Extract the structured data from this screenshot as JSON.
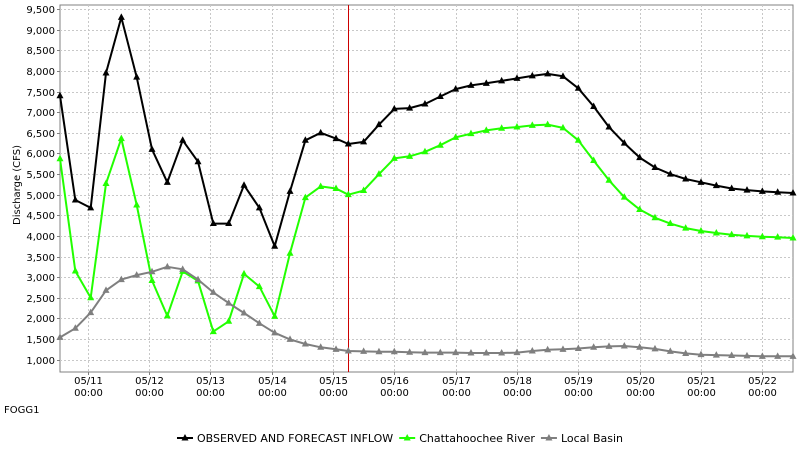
{
  "station_id": "FOGG1",
  "chart_data": {
    "type": "line",
    "ylabel": "Discharge (CFS)",
    "ylim": [
      700,
      9600
    ],
    "yticks": [
      1000,
      1500,
      2000,
      2500,
      3000,
      3500,
      4000,
      4500,
      5000,
      5500,
      6000,
      6500,
      7000,
      7500,
      8000,
      8500,
      9000,
      9500
    ],
    "ytick_labels": [
      "1,000",
      "1,500",
      "2,000",
      "2,500",
      "3,000",
      "3,500",
      "4,000",
      "4,500",
      "5,000",
      "5,500",
      "6,000",
      "6,500",
      "7,000",
      "7,500",
      "8,000",
      "8,500",
      "9,000",
      "9,500"
    ],
    "xlim_days": [
      10.55,
      22.5
    ],
    "x_axis": {
      "date_labels": [
        "05/11",
        "05/12",
        "05/13",
        "05/14",
        "05/15",
        "05/16",
        "05/17",
        "05/18",
        "05/19",
        "05/20",
        "05/21",
        "05/22"
      ],
      "time_labels": [
        "00:00",
        "00:00",
        "00:00",
        "00:00",
        "00:00",
        "00:00",
        "00:00",
        "00:00",
        "00:00",
        "00:00",
        "00:00",
        "00:00"
      ],
      "days": [
        11,
        12,
        13,
        14,
        15,
        16,
        17,
        18,
        19,
        20,
        21,
        22
      ]
    },
    "forecast_start_day": 15.25,
    "grid": true,
    "legend_position": "bottom",
    "series": [
      {
        "name": "OBSERVED AND FORECAST INFLOW",
        "color": "#000000",
        "x": [
          10.55,
          10.8,
          11.05,
          11.3,
          11.55,
          11.8,
          12.05,
          12.3,
          12.55,
          12.8,
          13.05,
          13.3,
          13.55,
          13.8,
          14.05,
          14.3,
          14.55,
          14.8,
          15.05,
          15.25,
          15.5,
          15.75,
          16.0,
          16.25,
          16.5,
          16.75,
          17.0,
          17.25,
          17.5,
          17.75,
          18.0,
          18.25,
          18.5,
          18.75,
          19.0,
          19.25,
          19.5,
          19.75,
          20.0,
          20.25,
          20.5,
          20.75,
          21.0,
          21.25,
          21.5,
          21.75,
          22.0,
          22.25,
          22.5
        ],
        "values": [
          7400,
          4870,
          4680,
          7950,
          9300,
          7850,
          6100,
          5300,
          6320,
          5800,
          4300,
          4300,
          5230,
          4680,
          3750,
          5080,
          6320,
          6500,
          6360,
          6230,
          6280,
          6700,
          7080,
          7100,
          7200,
          7380,
          7560,
          7650,
          7700,
          7760,
          7820,
          7880,
          7930,
          7870,
          7580,
          7140,
          6640,
          6250,
          5900,
          5660,
          5500,
          5380,
          5300,
          5220,
          5150,
          5110,
          5080,
          5060,
          5040
        ]
      },
      {
        "name": "Chattahoochee River",
        "color": "#22ff00",
        "x": [
          10.55,
          10.8,
          11.05,
          11.3,
          11.55,
          11.8,
          12.05,
          12.3,
          12.55,
          12.8,
          13.05,
          13.3,
          13.55,
          13.8,
          14.05,
          14.3,
          14.55,
          14.8,
          15.05,
          15.25,
          15.5,
          15.75,
          16.0,
          16.25,
          16.5,
          16.75,
          17.0,
          17.25,
          17.5,
          17.75,
          18.0,
          18.25,
          18.5,
          18.75,
          19.0,
          19.25,
          19.5,
          19.75,
          20.0,
          20.25,
          20.5,
          20.75,
          21.0,
          21.25,
          21.5,
          21.75,
          22.0,
          22.25,
          22.5
        ],
        "values": [
          5870,
          3150,
          2500,
          5270,
          6360,
          4750,
          2920,
          2060,
          3140,
          2910,
          1680,
          1930,
          3080,
          2770,
          2050,
          3580,
          4930,
          5200,
          5150,
          5000,
          5100,
          5500,
          5880,
          5930,
          6040,
          6200,
          6390,
          6480,
          6560,
          6610,
          6640,
          6680,
          6700,
          6620,
          6320,
          5830,
          5350,
          4940,
          4640,
          4440,
          4300,
          4190,
          4120,
          4070,
          4030,
          4000,
          3980,
          3970,
          3950
        ]
      },
      {
        "name": "Local Basin",
        "color": "#7f7f7f",
        "x": [
          10.55,
          10.8,
          11.05,
          11.3,
          11.55,
          11.8,
          12.05,
          12.3,
          12.55,
          12.8,
          13.05,
          13.3,
          13.55,
          13.8,
          14.05,
          14.3,
          14.55,
          14.8,
          15.05,
          15.25,
          15.5,
          15.75,
          16.0,
          16.25,
          16.5,
          16.75,
          17.0,
          17.25,
          17.5,
          17.75,
          18.0,
          18.25,
          18.5,
          18.75,
          19.0,
          19.25,
          19.5,
          19.75,
          20.0,
          20.25,
          20.5,
          20.75,
          21.0,
          21.25,
          21.5,
          21.75,
          22.0,
          22.25,
          22.5
        ],
        "values": [
          1540,
          1760,
          2140,
          2680,
          2940,
          3050,
          3130,
          3250,
          3190,
          2940,
          2630,
          2370,
          2130,
          1880,
          1650,
          1490,
          1380,
          1300,
          1250,
          1210,
          1200,
          1190,
          1190,
          1180,
          1170,
          1170,
          1170,
          1160,
          1160,
          1160,
          1170,
          1210,
          1240,
          1250,
          1270,
          1300,
          1320,
          1330,
          1300,
          1260,
          1200,
          1150,
          1120,
          1110,
          1100,
          1090,
          1080,
          1080,
          1080
        ]
      }
    ]
  }
}
